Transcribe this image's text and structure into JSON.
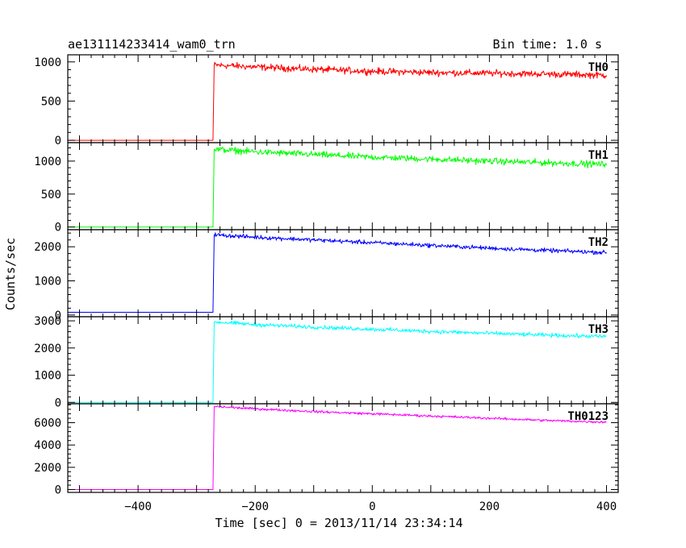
{
  "chart_data": {
    "type": "line",
    "title": "ae131114233414_wam0_trn",
    "bin_time": "Bin time: 1.0 s",
    "xlabel": "Time [sec] 0 = 2013/11/14 23:34:14",
    "ylabel": "Counts/sec",
    "xlim": [
      -520,
      420
    ],
    "x_ticks": [
      -400,
      -200,
      0,
      200,
      400
    ],
    "x_tick_labels": [
      "−400",
      "−200",
      "0",
      "200",
      "400"
    ],
    "panels": [
      {
        "name": "TH0",
        "color": "#ff0000",
        "ylim": [
          -30,
          1090
        ],
        "y_ticks": [
          0,
          500,
          1000
        ],
        "y_tick_labels": [
          "0",
          "500",
          "1000"
        ],
        "segments": [
          {
            "x": [
              -520,
              -272
            ],
            "y": [
              0,
              0
            ]
          },
          {
            "x": [
              -272,
              -270,
              -200,
              -100,
              0,
              100,
              200,
              300,
              400
            ],
            "y": [
              0,
              960,
              935,
              905,
              880,
              865,
              855,
              845,
              830
            ]
          }
        ],
        "noise": 35
      },
      {
        "name": "TH1",
        "color": "#00ff00",
        "ylim": [
          -40,
          1280
        ],
        "y_ticks": [
          0,
          500,
          1000
        ],
        "y_tick_labels": [
          "0",
          "500",
          "1000"
        ],
        "segments": [
          {
            "x": [
              -520,
              -272
            ],
            "y": [
              0,
              0
            ]
          },
          {
            "x": [
              -272,
              -270,
              -200,
              -100,
              0,
              100,
              200,
              300,
              400
            ],
            "y": [
              0,
              1180,
              1140,
              1100,
              1060,
              1030,
              1000,
              975,
              950
            ]
          }
        ],
        "noise": 40
      },
      {
        "name": "TH2",
        "color": "#0000ff",
        "ylim": [
          -50,
          2500
        ],
        "y_ticks": [
          0,
          1000,
          2000
        ],
        "y_tick_labels": [
          "0",
          "1000",
          "2000"
        ],
        "segments": [
          {
            "x": [
              -520,
              -272
            ],
            "y": [
              80,
              80
            ]
          },
          {
            "x": [
              -272,
              -270,
              -200,
              -100,
              0,
              100,
              200,
              300,
              400
            ],
            "y": [
              80,
              2350,
              2280,
              2200,
              2120,
              2040,
              1960,
              1890,
              1830
            ]
          }
        ],
        "noise": 50
      },
      {
        "name": "TH3",
        "color": "#00ffff",
        "ylim": [
          -50,
          3150
        ],
        "y_ticks": [
          0,
          1000,
          2000,
          3000
        ],
        "y_tick_labels": [
          "0",
          "1000",
          "2000",
          "3000"
        ],
        "segments": [
          {
            "x": [
              -520,
              -272
            ],
            "y": [
              0,
              0
            ]
          },
          {
            "x": [
              -272,
              -270,
              -200,
              -100,
              0,
              100,
              200,
              300,
              400
            ],
            "y": [
              0,
              2960,
              2860,
              2770,
              2690,
              2610,
              2540,
              2470,
              2420
            ]
          }
        ],
        "noise": 60
      },
      {
        "name": "TH0123",
        "color": "#ff00ff",
        "ylim": [
          -250,
          7700
        ],
        "y_ticks": [
          0,
          2000,
          4000,
          6000
        ],
        "y_tick_labels": [
          "0",
          "2000",
          "4000",
          "6000"
        ],
        "segments": [
          {
            "x": [
              -520,
              -272
            ],
            "y": [
              0,
              0
            ]
          },
          {
            "x": [
              -272,
              -270,
              -200,
              -100,
              0,
              100,
              200,
              300,
              400
            ],
            "y": [
              0,
              7450,
              7250,
              7000,
              6800,
              6600,
              6400,
              6200,
              6050
            ]
          }
        ],
        "noise": 90
      }
    ]
  }
}
